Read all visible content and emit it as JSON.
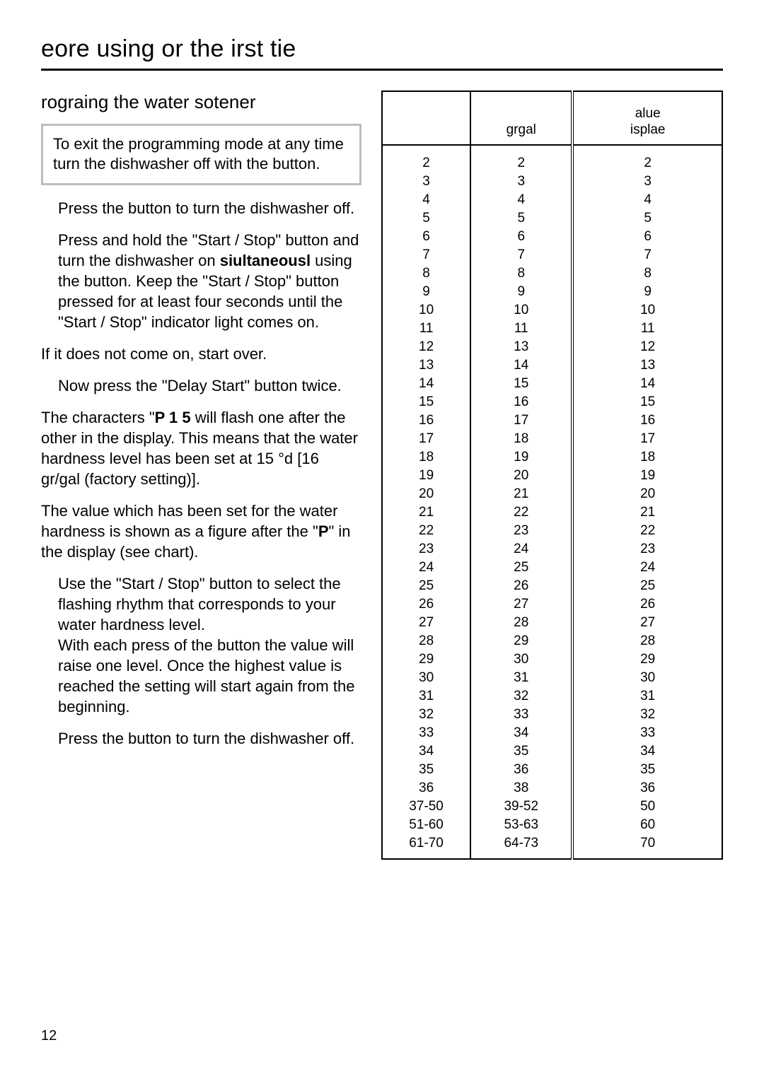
{
  "page": {
    "title": "eore using or the irst tie",
    "number": "12"
  },
  "left": {
    "subheading": "rograing the water sotener",
    "infobox": "To exit the programming mode at any time turn the dishwasher off with the        button.",
    "p1": "Press the      button to turn the dishwasher off.",
    "p2a": "Press and hold the \"Start / Stop\" button and turn the dishwasher on ",
    "p2b": "siultaneousl",
    "p2c": "      using the       button. Keep the \"Start / Stop\" button pressed for at least four seconds until the \"Start / Stop\" indicator light comes on.",
    "p3": "If it does not come on, start over.",
    "p4": "Now press the \"Delay Start\" button twice.",
    "p5a": "The characters \"",
    "p5b": "P  1  5",
    "p5c": " will flash one after the other in the display. This means that the water hardness level has been set at 15 °d [16 gr/gal (factory setting)].",
    "p6a": "The value which has been set for the water hardness is shown as a figure after the \"",
    "p6b": "P",
    "p6c": "\" in the display (see chart).",
    "p7": "Use the \"Start / Stop\" button to select the flashing rhythm that corresponds to your water hardness level.\nWith each press of the button the value will raise one level. Once the highest value is reached the setting will start again from the beginning.",
    "p8": "Press the      button to turn the dishwasher off."
  },
  "table": {
    "headers": {
      "c1": "",
      "c2": "grgal",
      "c3": "alue\nisplae"
    },
    "rows": [
      [
        "2",
        "2",
        "2"
      ],
      [
        "3",
        "3",
        "3"
      ],
      [
        "4",
        "4",
        "4"
      ],
      [
        "5",
        "5",
        "5"
      ],
      [
        "6",
        "6",
        "6"
      ],
      [
        "7",
        "7",
        "7"
      ],
      [
        "8",
        "8",
        "8"
      ],
      [
        "9",
        "9",
        "9"
      ],
      [
        "10",
        "10",
        "10"
      ],
      [
        "11",
        "11",
        "11"
      ],
      [
        "12",
        "13",
        "12"
      ],
      [
        "13",
        "14",
        "13"
      ],
      [
        "14",
        "15",
        "14"
      ],
      [
        "15",
        "16",
        "15"
      ],
      [
        "16",
        "17",
        "16"
      ],
      [
        "17",
        "18",
        "17"
      ],
      [
        "18",
        "19",
        "18"
      ],
      [
        "19",
        "20",
        "19"
      ],
      [
        "20",
        "21",
        "20"
      ],
      [
        "21",
        "22",
        "21"
      ],
      [
        "22",
        "23",
        "22"
      ],
      [
        "23",
        "24",
        "23"
      ],
      [
        "24",
        "25",
        "24"
      ],
      [
        "25",
        "26",
        "25"
      ],
      [
        "26",
        "27",
        "26"
      ],
      [
        "27",
        "28",
        "27"
      ],
      [
        "28",
        "29",
        "28"
      ],
      [
        "29",
        "30",
        "29"
      ],
      [
        "30",
        "31",
        "30"
      ],
      [
        "31",
        "32",
        "31"
      ],
      [
        "32",
        "33",
        "32"
      ],
      [
        "33",
        "34",
        "33"
      ],
      [
        "34",
        "35",
        "34"
      ],
      [
        "35",
        "36",
        "35"
      ],
      [
        "36",
        "38",
        "36"
      ],
      [
        "37-50",
        "39-52",
        "50"
      ],
      [
        "51-60",
        "53-63",
        "60"
      ],
      [
        "61-70",
        "64-73",
        "70"
      ]
    ]
  }
}
